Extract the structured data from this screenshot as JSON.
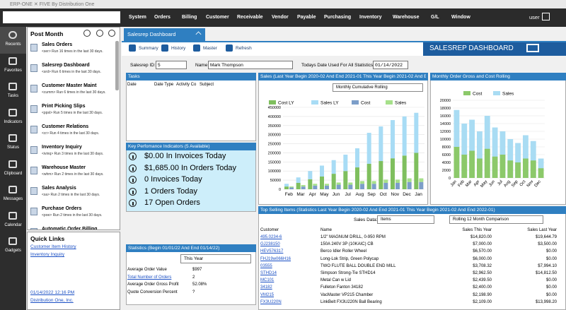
{
  "window_title": "ERP-ONE ✕ FIVE By Distribution One",
  "menu": [
    "System",
    "Orders",
    "Billing",
    "Customer",
    "Receivable",
    "Vendor",
    "Payable",
    "Purchasing",
    "Inventory",
    "Warehouse",
    "G/L",
    "Window"
  ],
  "user": "user",
  "sidebar": [
    "Recents",
    "Favorites",
    "Tasks",
    "Indicators",
    "Status",
    "Clipboard",
    "Messages",
    "Calendar",
    "Gadgets"
  ],
  "recent_panel": {
    "title": "Post Month",
    "items": [
      {
        "title": "Sales Orders",
        "detail": "<ser> Run 16 times in the last 30 days."
      },
      {
        "title": "Salesrep Dashboard",
        "detail": "<srd> Run 6 times in the last 30 days."
      },
      {
        "title": "Customer Master Maint",
        "detail": "<cumm> Run 6 times in the last 30 days."
      },
      {
        "title": "Print Picking Slips",
        "detail": "<ppsl> Run 5 times in the last 30 days."
      },
      {
        "title": "Customer Relations",
        "detail": "<cr> Run 4 times in the last 30 days."
      },
      {
        "title": "Inventory Inquiry",
        "detail": "<ivinq> Run 3 times in the last 30 days."
      },
      {
        "title": "Warehouse Master",
        "detail": "<whm> Run 2 times in the last 30 days."
      },
      {
        "title": "Sales Analysis",
        "detail": "<sa> Run 2 times in the last 30 days."
      },
      {
        "title": "Purchase Orders",
        "detail": "<poe> Run 2 times in the last 30 days."
      },
      {
        "title": "Automatic Order Billing",
        "detail": ""
      }
    ]
  },
  "quick_links": {
    "title": "Quick Links",
    "links": [
      "Customer Item History",
      "Inventory Inquiry"
    ],
    "timestamp": "01/14/2022 12:16 PM",
    "company": "Distribution One, Inc."
  },
  "tab": "Salesrep Dashboard",
  "toolbar": [
    "Summary",
    "History",
    "Master",
    "Refresh"
  ],
  "banner": "SALESREP DASHBOARD",
  "form": {
    "salesrep_label": "Salesrep ID:",
    "salesrep_id": "5",
    "name_label": "Name:",
    "name": "Mark Thompson",
    "date_label": "Todays Date Used For All Statistics:",
    "date": "01/14/2022"
  },
  "tasks": {
    "title": "Tasks",
    "columns": [
      "Date",
      "Date Type",
      "Activity Co",
      "Subject"
    ]
  },
  "kpi": {
    "title": "Key Perfomance Indicators (5 Available)",
    "items": [
      "$0.00 In Invoices Today",
      "$1,685.00 In Orders Today",
      "0 Invoices Today",
      "1 Orders Today",
      "17 Open Orders"
    ]
  },
  "statistics": {
    "title": "Statistics (Begin 01/01/22 And End 01/14/22)",
    "period": "This Year",
    "rows": [
      [
        "Average Order Value",
        "$997"
      ],
      [
        "Total Number of Orders",
        "2"
      ],
      [
        "Average Order Gross Profit",
        "52.08%"
      ],
      [
        "Quote Conversion Percent",
        "?"
      ]
    ]
  },
  "chart_data": [
    {
      "type": "bar",
      "title": "Sales (Last Year Begin 2020-02 And End 2021-01 This Year Begin 2021-02 And End",
      "mode": "Monthly Cumulative Rolling",
      "categories": [
        "Feb",
        "Mar",
        "Apr",
        "May",
        "Jun",
        "Jul",
        "Aug",
        "Sep",
        "Oct",
        "Nov",
        "Dec",
        "Jan"
      ],
      "series": [
        {
          "name": "Cost LY",
          "color": "#7fbf5e",
          "values": [
            15000,
            35000,
            55000,
            70000,
            85000,
            100000,
            120000,
            140000,
            155000,
            170000,
            185000,
            200000
          ]
        },
        {
          "name": "Sales LY",
          "color": "#a8dcf5",
          "values": [
            15000,
            30000,
            45000,
            60000,
            75000,
            90000,
            105000,
            170000,
            190000,
            210000,
            215000,
            220000
          ]
        },
        {
          "name": "Cost",
          "color": "#7c9ec9",
          "values": [
            10000,
            15000,
            20000,
            20000,
            25000,
            25000,
            30000,
            30000,
            35000,
            35000,
            40000,
            40000
          ]
        },
        {
          "name": "Sales",
          "color": "#a6e08a",
          "values": [
            5000,
            8000,
            10000,
            10000,
            12000,
            12000,
            15000,
            15000,
            18000,
            18000,
            20000,
            20000
          ]
        }
      ],
      "ylim": [
        0,
        450000
      ],
      "yticks": [
        0,
        50000,
        100000,
        150000,
        200000,
        250000,
        300000,
        350000,
        400000,
        450000
      ],
      "grid": true
    },
    {
      "type": "bar",
      "title": "Monthly Order Gross and Cost Rolling",
      "categories": [
        "Jan",
        "Feb",
        "Mar",
        "Apr",
        "May",
        "Jun",
        "Jul",
        "Aug",
        "Sep",
        "Oct",
        "Nov",
        "Dec"
      ],
      "series": [
        {
          "name": "Cost",
          "color": "#8cc96a",
          "values": [
            8000,
            6000,
            7000,
            5000,
            7500,
            5500,
            6000,
            4500,
            4000,
            5000,
            4500,
            2500
          ]
        },
        {
          "name": "Sales",
          "color": "#a9dcf3",
          "values": [
            17500,
            14000,
            15000,
            12000,
            16000,
            13000,
            12000,
            10000,
            9000,
            11000,
            9500,
            5000
          ]
        }
      ],
      "ylim": [
        0,
        20000
      ],
      "yticks": [
        0,
        2000,
        4000,
        6000,
        8000,
        10000,
        12000,
        14000,
        16000,
        18000,
        20000
      ],
      "grid": true
    }
  ],
  "top_items": {
    "title": "Top Selling Items (Statistics Last Year Begin 2020-02 And End 2021-01 This Year Begin 2021-02 And End 2022-01)",
    "sales_data_label": "Sales Data:",
    "sales_data": "Items",
    "comparison": "Rolling 12 Month Comparison",
    "columns": [
      "Customer",
      "Name",
      "Sales This Year",
      "Sales Last Year"
    ],
    "rows": [
      [
        "495.0234-6",
        "1/2\" MAGNUM DRILL, 0-950 RPM",
        "$14,820.00",
        "$19,644.79"
      ],
      [
        "GJ238150",
        "150A 240V 3P (10KAIC) CB",
        "$7,000.00",
        "$3,500.00"
      ],
      [
        "HEV576317",
        "Berco Idler Roller Wheel",
        "$6,570.00",
        "$0.00"
      ],
      [
        "FHJ19w066H16",
        "Long-Lok Strip, Green Polycap",
        "$6,000.00",
        "$0.00"
      ],
      [
        "03555",
        "TWO FLUTE BALL DOUBLE END MILL",
        "$3,708.32",
        "$7,994.10"
      ],
      [
        "STHD14",
        "Simpson Strong-Tie STHD14",
        "$2,962.50",
        "$14,812.50"
      ],
      [
        "MC101",
        "Metal Can w Lid",
        "$2,439.50",
        "$0.00"
      ],
      [
        "34182",
        "Fulleton Fanton 34182",
        "$2,400.00",
        "$0.00"
      ],
      [
        "VM215",
        "VacMaster VP215 Chamber",
        "$2,198.90",
        "$0.00"
      ],
      [
        "FX3U220N",
        "LinkBelt FX3U220N Ball Bearing",
        "$2,109.00",
        "$13,998.20"
      ]
    ]
  }
}
